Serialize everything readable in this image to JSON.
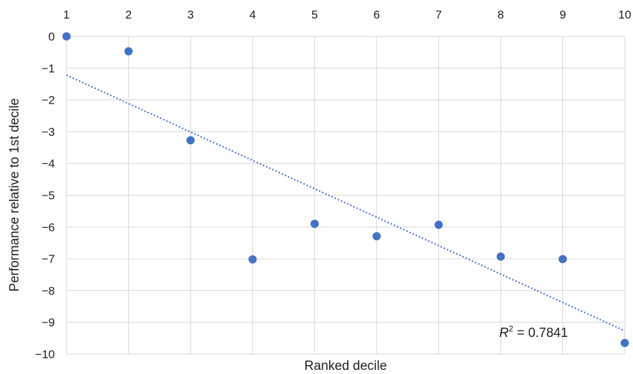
{
  "chart_data": {
    "type": "scatter",
    "title": "",
    "xlabel": "Ranked decile",
    "ylabel": "Performance relative to 1st decile",
    "xlim": [
      1,
      10
    ],
    "ylim": [
      -10,
      0
    ],
    "x_ticks": [
      "1",
      "2",
      "3",
      "4",
      "5",
      "6",
      "7",
      "8",
      "9",
      "10"
    ],
    "y_ticks": [
      "0",
      "−1",
      "−2",
      "−3",
      "−4",
      "−5",
      "−6",
      "−7",
      "−8",
      "−9",
      "−10"
    ],
    "x_axis_position": "top",
    "grid": true,
    "series": [
      {
        "x": [
          1,
          2,
          3,
          4,
          5,
          6,
          7,
          8,
          9,
          10
        ],
        "y": [
          0,
          -0.47,
          -3.27,
          -7.02,
          -5.9,
          -6.29,
          -5.93,
          -6.93,
          -7.01,
          -9.65
        ],
        "color": "#4472c4"
      }
    ],
    "trendline": {
      "type": "linear",
      "y_start": -1.22,
      "y_end": -9.27,
      "style": "dotted",
      "color": "#4472c4",
      "r2_label": {
        "symbol": "R",
        "superscript": "2",
        "text": " = 0.7841"
      }
    }
  }
}
